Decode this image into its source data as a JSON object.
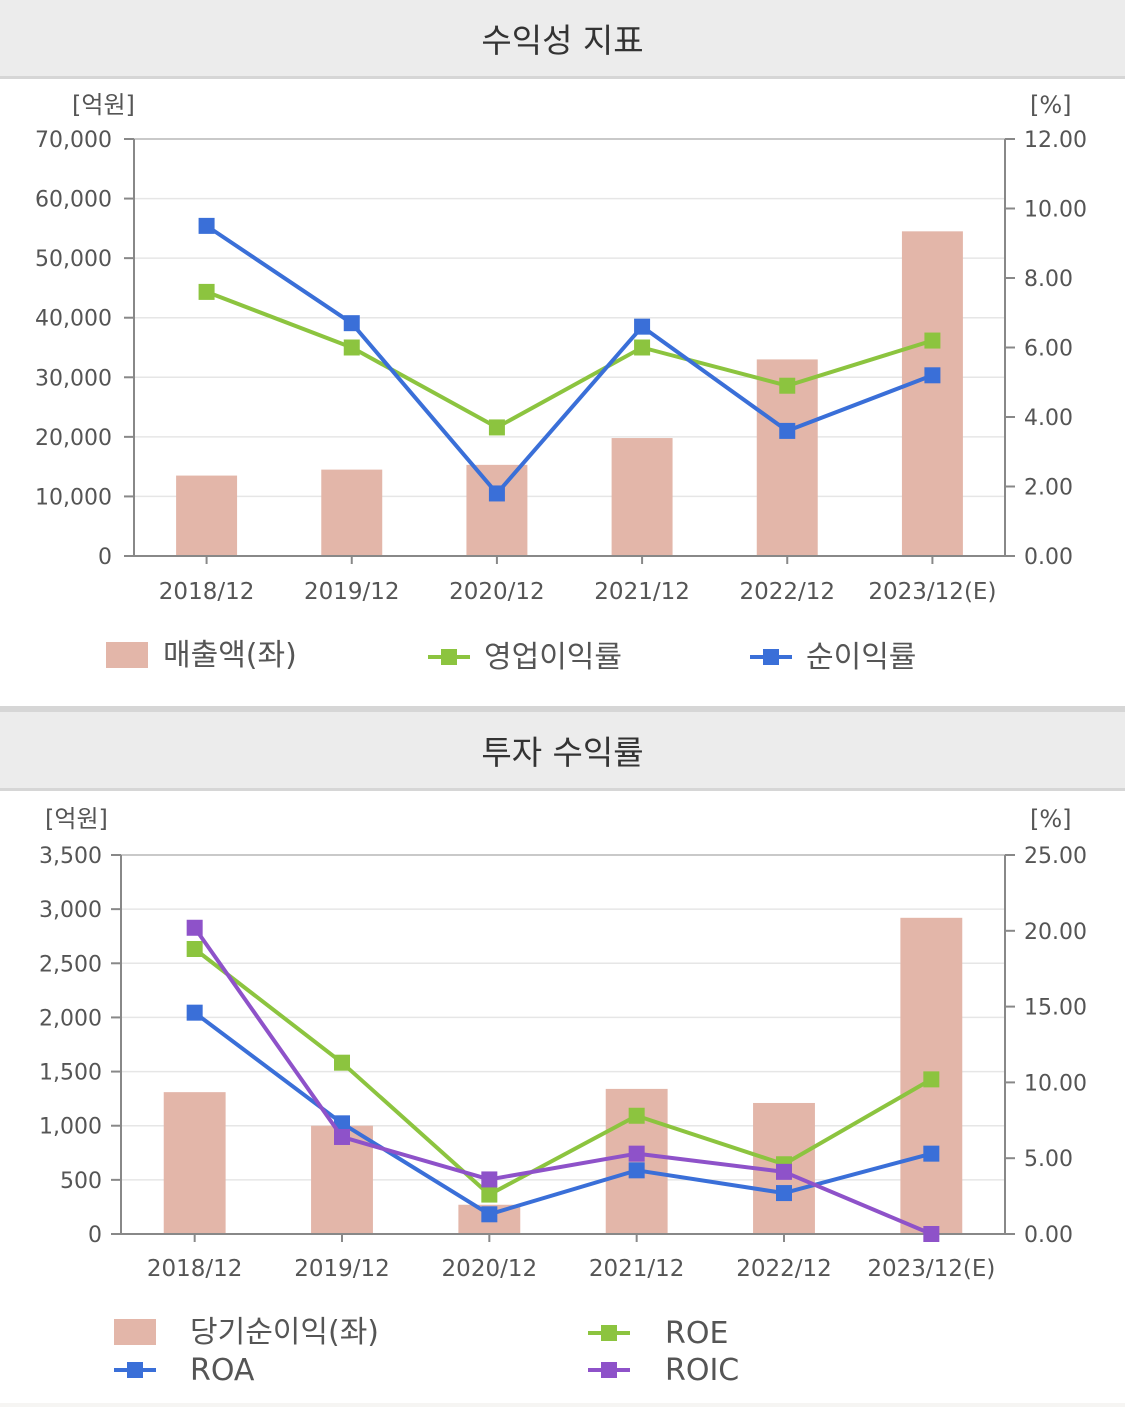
{
  "colors": {
    "bar": "#e3b6a9",
    "green": "#8cc43f",
    "blue": "#3a6fd8",
    "purple": "#8e52c9",
    "axis": "#888888",
    "grid": "#e6e6e6"
  },
  "chart_data": [
    {
      "type": "bar+line",
      "title": "수익성 지표",
      "left_unit": "[억원]",
      "right_unit": "[%]",
      "categories": [
        "2018/12",
        "2019/12",
        "2020/12",
        "2021/12",
        "2022/12",
        "2023/12(E)"
      ],
      "ylim_left": [
        0,
        70000
      ],
      "ylim_right": [
        0,
        12
      ],
      "yticks_left": [
        "70,000",
        "60,000",
        "50,000",
        "40,000",
        "30,000",
        "20,000",
        "10,000",
        "0"
      ],
      "yticks_right": [
        "12.00",
        "10.00",
        "8.00",
        "6.00",
        "4.00",
        "2.00",
        "0.00"
      ],
      "bars": {
        "name": "매출액(좌)",
        "values": [
          13500,
          14500,
          15300,
          19800,
          33000,
          54500
        ]
      },
      "series": [
        {
          "name": "영업이익률",
          "color": "green",
          "values": [
            7.6,
            6.0,
            3.7,
            6.0,
            4.9,
            6.2
          ]
        },
        {
          "name": "순이익률",
          "color": "blue",
          "values": [
            9.5,
            6.7,
            1.8,
            6.6,
            3.6,
            5.2
          ]
        }
      ],
      "grid": true
    },
    {
      "type": "bar+line",
      "title": "투자 수익률",
      "left_unit": "[억원]",
      "right_unit": "[%]",
      "categories": [
        "2018/12",
        "2019/12",
        "2020/12",
        "2021/12",
        "2022/12",
        "2023/12(E)"
      ],
      "ylim_left": [
        0,
        3500
      ],
      "ylim_right": [
        0,
        25
      ],
      "yticks_left": [
        "3,500",
        "3,000",
        "2,500",
        "2,000",
        "1,500",
        "1,000",
        "500",
        "0"
      ],
      "yticks_right": [
        "25.00",
        "20.00",
        "15.00",
        "10.00",
        "5.00",
        "0.00"
      ],
      "bars": {
        "name": "당기순이익(좌)",
        "values": [
          1310,
          1000,
          270,
          1340,
          1210,
          2920
        ]
      },
      "series": [
        {
          "name": "ROE",
          "color": "green",
          "values": [
            18.8,
            11.3,
            2.6,
            7.8,
            4.6,
            10.2
          ]
        },
        {
          "name": "ROA",
          "color": "blue",
          "values": [
            14.6,
            7.3,
            1.3,
            4.2,
            2.7,
            5.3
          ]
        },
        {
          "name": "ROIC",
          "color": "purple",
          "values": [
            20.2,
            6.4,
            3.6,
            5.3,
            4.1,
            0.0
          ]
        }
      ],
      "grid": true
    }
  ]
}
